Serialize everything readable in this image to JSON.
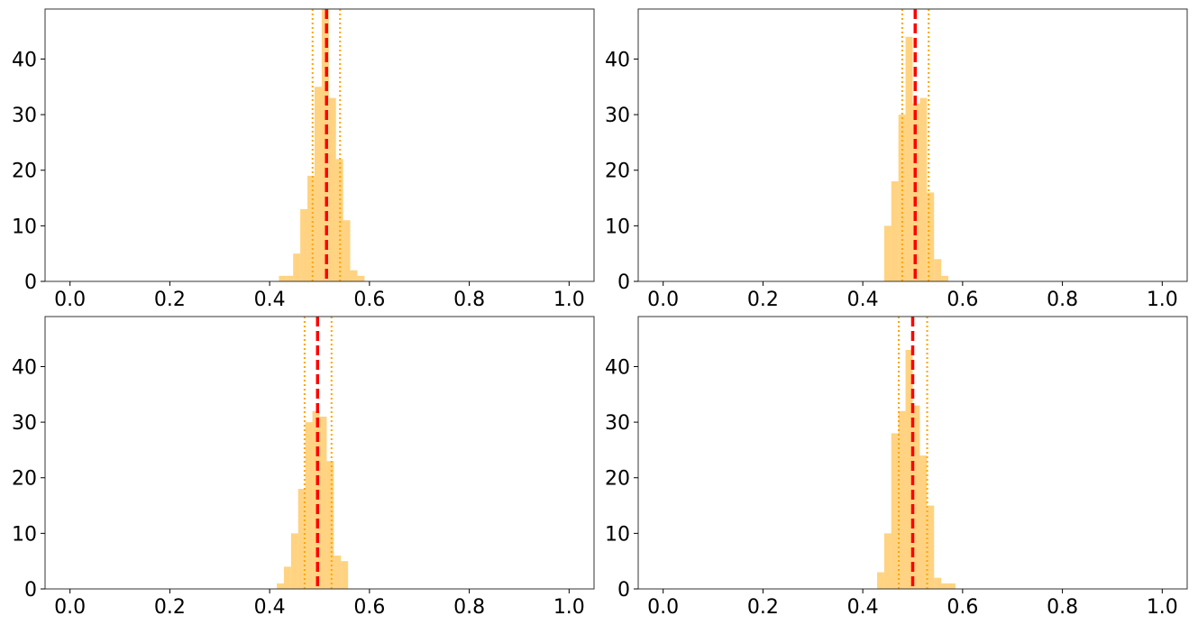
{
  "colors": {
    "bars": "#ffc04c",
    "bar_opacity": 0.7,
    "mean_line": "#ff0000",
    "ci_line": "#ffa500",
    "axes": "#333333"
  },
  "chart_data": [
    {
      "type": "bar",
      "title": "",
      "xlabel": "",
      "ylabel": "",
      "xlim": [
        -0.05,
        1.05
      ],
      "ylim": [
        0,
        49
      ],
      "grid": false,
      "xticks": [
        0.0,
        0.2,
        0.4,
        0.6,
        0.8,
        1.0
      ],
      "xtick_labels": [
        "0.0",
        "0.2",
        "0.4",
        "0.6",
        "0.8",
        "1.0"
      ],
      "yticks": [
        0,
        10,
        20,
        30,
        40
      ],
      "ytick_labels": [
        "0",
        "10",
        "20",
        "30",
        "40"
      ],
      "bin_width": 0.0143,
      "bins": [
        {
          "x": 0.4186,
          "count": 1
        },
        {
          "x": 0.4329,
          "count": 1
        },
        {
          "x": 0.4471,
          "count": 5
        },
        {
          "x": 0.4614,
          "count": 13
        },
        {
          "x": 0.4757,
          "count": 19
        },
        {
          "x": 0.49,
          "count": 35
        },
        {
          "x": 0.5043,
          "count": 49
        },
        {
          "x": 0.5186,
          "count": 33
        },
        {
          "x": 0.5329,
          "count": 22
        },
        {
          "x": 0.5471,
          "count": 11
        },
        {
          "x": 0.5614,
          "count": 2
        },
        {
          "x": 0.5757,
          "count": 1
        }
      ],
      "mean": 0.514,
      "ci": [
        0.486,
        0.541
      ]
    },
    {
      "type": "bar",
      "title": "",
      "xlabel": "",
      "ylabel": "",
      "xlim": [
        -0.05,
        1.05
      ],
      "ylim": [
        0,
        49
      ],
      "grid": false,
      "xticks": [
        0.0,
        0.2,
        0.4,
        0.6,
        0.8,
        1.0
      ],
      "xtick_labels": [
        "0.0",
        "0.2",
        "0.4",
        "0.6",
        "0.8",
        "1.0"
      ],
      "yticks": [
        0,
        10,
        20,
        30,
        40
      ],
      "ytick_labels": [
        "0",
        "10",
        "20",
        "30",
        "40"
      ],
      "bin_width": 0.0143,
      "bins": [
        {
          "x": 0.4429,
          "count": 10
        },
        {
          "x": 0.4571,
          "count": 18
        },
        {
          "x": 0.4714,
          "count": 30
        },
        {
          "x": 0.4857,
          "count": 44
        },
        {
          "x": 0.5,
          "count": 32
        },
        {
          "x": 0.5143,
          "count": 33
        },
        {
          "x": 0.5286,
          "count": 16
        },
        {
          "x": 0.5429,
          "count": 4
        },
        {
          "x": 0.5571,
          "count": 1
        }
      ],
      "mean": 0.505,
      "ci": [
        0.479,
        0.532
      ]
    },
    {
      "type": "bar",
      "title": "",
      "xlabel": "",
      "ylabel": "",
      "xlim": [
        -0.05,
        1.05
      ],
      "ylim": [
        0,
        49
      ],
      "grid": false,
      "xticks": [
        0.0,
        0.2,
        0.4,
        0.6,
        0.8,
        1.0
      ],
      "xtick_labels": [
        "0.0",
        "0.2",
        "0.4",
        "0.6",
        "0.8",
        "1.0"
      ],
      "yticks": [
        0,
        10,
        20,
        30,
        40
      ],
      "ytick_labels": [
        "0",
        "10",
        "20",
        "30",
        "40"
      ],
      "bin_width": 0.0143,
      "bins": [
        {
          "x": 0.4143,
          "count": 1
        },
        {
          "x": 0.4286,
          "count": 4
        },
        {
          "x": 0.4429,
          "count": 10
        },
        {
          "x": 0.4571,
          "count": 18
        },
        {
          "x": 0.4714,
          "count": 30
        },
        {
          "x": 0.4857,
          "count": 32
        },
        {
          "x": 0.5,
          "count": 31
        },
        {
          "x": 0.5143,
          "count": 23
        },
        {
          "x": 0.5286,
          "count": 6
        },
        {
          "x": 0.5429,
          "count": 5
        }
      ],
      "mean": 0.496,
      "ci": [
        0.47,
        0.524
      ]
    },
    {
      "type": "bar",
      "title": "",
      "xlabel": "",
      "ylabel": "",
      "xlim": [
        -0.05,
        1.05
      ],
      "ylim": [
        0,
        49
      ],
      "grid": false,
      "xticks": [
        0.0,
        0.2,
        0.4,
        0.6,
        0.8,
        1.0
      ],
      "xtick_labels": [
        "0.0",
        "0.2",
        "0.4",
        "0.6",
        "0.8",
        "1.0"
      ],
      "yticks": [
        0,
        10,
        20,
        30,
        40
      ],
      "ytick_labels": [
        "0",
        "10",
        "20",
        "30",
        "40"
      ],
      "bin_width": 0.0143,
      "bins": [
        {
          "x": 0.4286,
          "count": 3
        },
        {
          "x": 0.4429,
          "count": 10
        },
        {
          "x": 0.4571,
          "count": 28
        },
        {
          "x": 0.4714,
          "count": 32
        },
        {
          "x": 0.4857,
          "count": 43
        },
        {
          "x": 0.5,
          "count": 33
        },
        {
          "x": 0.5143,
          "count": 24
        },
        {
          "x": 0.5286,
          "count": 15
        },
        {
          "x": 0.5429,
          "count": 2
        },
        {
          "x": 0.5571,
          "count": 1
        },
        {
          "x": 0.5714,
          "count": 1
        }
      ],
      "mean": 0.5,
      "ci": [
        0.472,
        0.529
      ]
    }
  ]
}
